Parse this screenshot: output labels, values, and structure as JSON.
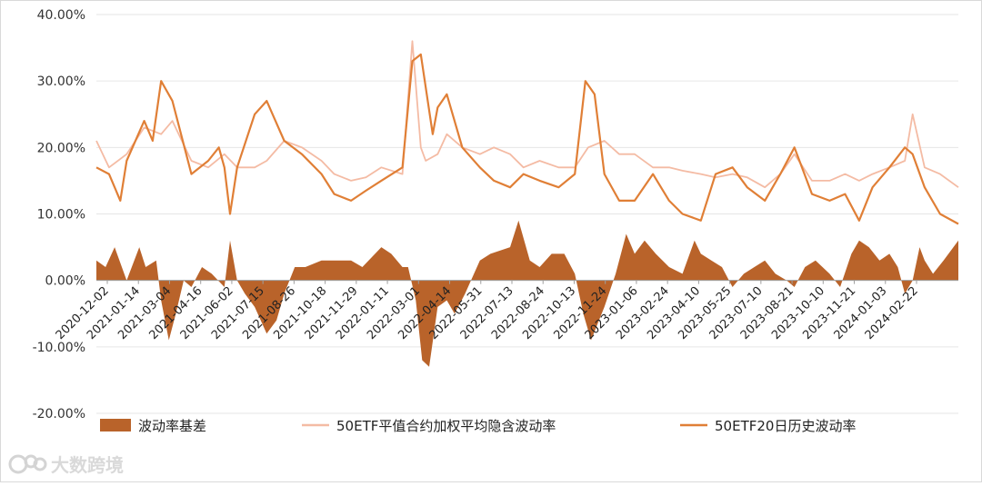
{
  "colors": {
    "basis": "#b9632a",
    "implied": "#f4bba4",
    "historical": "#e07f36",
    "grid": "#e6e6e6",
    "axis": "#9f9f9f",
    "watermark": "#d4d4d4"
  },
  "watermark": {
    "text": "大数跨境",
    "icon": "brand-logo-icon"
  },
  "chart_data": {
    "type": "line",
    "title": "",
    "xlabel": "",
    "ylabel": "",
    "ylim": [
      -0.2,
      0.4
    ],
    "yticks": [
      -0.2,
      -0.1,
      0.0,
      0.1,
      0.2,
      0.3,
      0.4
    ],
    "ytick_labels": [
      "-20.00%",
      "-10.00%",
      "0.00%",
      "10.00%",
      "20.00%",
      "30.00%",
      "40.00%"
    ],
    "x_range": [
      "2020-12-02",
      "2024-04-10"
    ],
    "xtick_labels": [
      "2020-12-02",
      "2021-01-14",
      "2021-03-04",
      "2021-04-16",
      "2021-06-02",
      "2021-07-15",
      "2021-08-26",
      "2021-10-18",
      "2021-11-29",
      "2022-01-11",
      "2022-03-01",
      "2022-04-14",
      "2022-05-31",
      "2022-07-13",
      "2022-08-24",
      "2022-10-13",
      "2022-11-24",
      "2023-01-06",
      "2023-02-24",
      "2023-04-10",
      "2023-05-25",
      "2023-07-10",
      "2023-08-21",
      "2023-10-10",
      "2023-11-21",
      "2024-01-03",
      "2024-02-22"
    ],
    "legend": {
      "position": "bottom",
      "items": [
        "波动率基差",
        "50ETF平值合约加权平均隐含波动率",
        "50ETF20日历史波动率"
      ]
    },
    "series": [
      {
        "name": "50ETF平值合约加权平均隐含波动率",
        "type": "line",
        "x": [
          "2020-12-02",
          "2020-12-20",
          "2021-01-14",
          "2021-02-08",
          "2021-03-04",
          "2021-03-20",
          "2021-04-16",
          "2021-05-10",
          "2021-06-02",
          "2021-06-20",
          "2021-07-15",
          "2021-08-01",
          "2021-08-26",
          "2021-09-20",
          "2021-10-18",
          "2021-11-05",
          "2021-11-29",
          "2021-12-20",
          "2022-01-11",
          "2022-02-10",
          "2022-02-24",
          "2022-03-08",
          "2022-03-15",
          "2022-04-01",
          "2022-04-14",
          "2022-05-06",
          "2022-05-31",
          "2022-06-20",
          "2022-07-13",
          "2022-08-01",
          "2022-08-24",
          "2022-09-20",
          "2022-10-13",
          "2022-11-01",
          "2022-11-24",
          "2022-12-15",
          "2023-01-06",
          "2023-02-01",
          "2023-02-24",
          "2023-03-15",
          "2023-04-10",
          "2023-05-01",
          "2023-05-25",
          "2023-06-15",
          "2023-07-10",
          "2023-08-01",
          "2023-08-21",
          "2023-09-15",
          "2023-10-10",
          "2023-11-01",
          "2023-11-21",
          "2023-12-10",
          "2024-01-03",
          "2024-01-25",
          "2024-02-05",
          "2024-02-22",
          "2024-03-15",
          "2024-04-10"
        ],
        "values": [
          0.21,
          0.17,
          0.19,
          0.23,
          0.22,
          0.24,
          0.18,
          0.17,
          0.19,
          0.17,
          0.17,
          0.18,
          0.21,
          0.2,
          0.18,
          0.16,
          0.15,
          0.155,
          0.17,
          0.16,
          0.36,
          0.2,
          0.18,
          0.19,
          0.22,
          0.2,
          0.19,
          0.2,
          0.19,
          0.17,
          0.18,
          0.17,
          0.17,
          0.2,
          0.21,
          0.19,
          0.19,
          0.17,
          0.17,
          0.165,
          0.16,
          0.155,
          0.16,
          0.155,
          0.14,
          0.16,
          0.19,
          0.15,
          0.15,
          0.16,
          0.15,
          0.16,
          0.17,
          0.18,
          0.25,
          0.17,
          0.16,
          0.14
        ]
      },
      {
        "name": "50ETF20日历史波动率",
        "type": "line",
        "x": [
          "2020-12-02",
          "2020-12-20",
          "2021-01-05",
          "2021-01-14",
          "2021-02-08",
          "2021-02-20",
          "2021-03-04",
          "2021-03-20",
          "2021-04-16",
          "2021-05-10",
          "2021-05-25",
          "2021-06-02",
          "2021-06-10",
          "2021-06-20",
          "2021-07-15",
          "2021-08-01",
          "2021-08-26",
          "2021-09-20",
          "2021-10-18",
          "2021-11-05",
          "2021-11-29",
          "2021-12-20",
          "2022-01-11",
          "2022-02-10",
          "2022-02-24",
          "2022-03-08",
          "2022-03-25",
          "2022-04-01",
          "2022-04-14",
          "2022-05-06",
          "2022-05-31",
          "2022-06-20",
          "2022-07-13",
          "2022-08-01",
          "2022-08-24",
          "2022-09-20",
          "2022-10-13",
          "2022-10-28",
          "2022-11-10",
          "2022-11-24",
          "2022-12-15",
          "2023-01-06",
          "2023-02-01",
          "2023-02-24",
          "2023-03-15",
          "2023-04-10",
          "2023-05-01",
          "2023-05-25",
          "2023-06-15",
          "2023-07-10",
          "2023-08-01",
          "2023-08-21",
          "2023-09-15",
          "2023-10-10",
          "2023-11-01",
          "2023-11-21",
          "2023-12-10",
          "2024-01-03",
          "2024-01-25",
          "2024-02-05",
          "2024-02-22",
          "2024-03-15",
          "2024-04-10"
        ],
        "values": [
          0.17,
          0.16,
          0.12,
          0.18,
          0.24,
          0.21,
          0.3,
          0.27,
          0.16,
          0.18,
          0.2,
          0.17,
          0.1,
          0.17,
          0.25,
          0.27,
          0.21,
          0.19,
          0.16,
          0.13,
          0.12,
          0.135,
          0.15,
          0.17,
          0.33,
          0.34,
          0.22,
          0.26,
          0.28,
          0.2,
          0.17,
          0.15,
          0.14,
          0.16,
          0.15,
          0.14,
          0.16,
          0.3,
          0.28,
          0.16,
          0.12,
          0.12,
          0.16,
          0.12,
          0.1,
          0.09,
          0.16,
          0.17,
          0.14,
          0.12,
          0.16,
          0.2,
          0.13,
          0.12,
          0.13,
          0.09,
          0.14,
          0.17,
          0.2,
          0.19,
          0.14,
          0.1,
          0.085
        ]
      },
      {
        "name": "波动率基差",
        "type": "area",
        "x": [
          "2020-12-02",
          "2020-12-15",
          "2020-12-28",
          "2021-01-14",
          "2021-02-01",
          "2021-02-10",
          "2021-02-25",
          "2021-03-04",
          "2021-03-15",
          "2021-03-25",
          "2021-04-05",
          "2021-04-16",
          "2021-05-01",
          "2021-05-15",
          "2021-06-02",
          "2021-06-10",
          "2021-06-20",
          "2021-07-01",
          "2021-07-15",
          "2021-08-01",
          "2021-08-15",
          "2021-08-26",
          "2021-09-10",
          "2021-09-25",
          "2021-10-18",
          "2021-11-05",
          "2021-11-29",
          "2021-12-15",
          "2022-01-11",
          "2022-01-25",
          "2022-02-10",
          "2022-02-18",
          "2022-03-01",
          "2022-03-10",
          "2022-03-20",
          "2022-04-01",
          "2022-04-14",
          "2022-04-25",
          "2022-05-10",
          "2022-05-31",
          "2022-06-15",
          "2022-07-13",
          "2022-07-25",
          "2022-08-10",
          "2022-08-24",
          "2022-09-10",
          "2022-09-28",
          "2022-10-13",
          "2022-10-25",
          "2022-11-05",
          "2022-11-24",
          "2022-12-10",
          "2022-12-25",
          "2023-01-06",
          "2023-01-20",
          "2023-02-05",
          "2023-02-24",
          "2023-03-15",
          "2023-04-01",
          "2023-04-10",
          "2023-04-25",
          "2023-05-10",
          "2023-05-25",
          "2023-06-10",
          "2023-06-25",
          "2023-07-10",
          "2023-07-25",
          "2023-08-10",
          "2023-08-21",
          "2023-09-05",
          "2023-09-20",
          "2023-10-10",
          "2023-10-25",
          "2023-11-10",
          "2023-11-21",
          "2023-12-05",
          "2023-12-20",
          "2024-01-03",
          "2024-01-15",
          "2024-01-25",
          "2024-02-05",
          "2024-02-15",
          "2024-02-22",
          "2024-03-05",
          "2024-03-20",
          "2024-04-10"
        ],
        "values": [
          0.03,
          0.02,
          0.05,
          0.0,
          0.05,
          0.02,
          0.03,
          -0.03,
          -0.09,
          -0.05,
          0.0,
          -0.01,
          0.02,
          0.01,
          -0.01,
          0.06,
          0.0,
          -0.02,
          -0.04,
          -0.08,
          -0.06,
          -0.02,
          0.02,
          0.02,
          0.03,
          0.03,
          0.03,
          0.02,
          0.05,
          0.04,
          0.02,
          0.02,
          -0.03,
          -0.12,
          -0.13,
          -0.04,
          -0.03,
          -0.05,
          -0.02,
          0.03,
          0.04,
          0.05,
          0.09,
          0.03,
          0.02,
          0.04,
          0.04,
          0.01,
          -0.05,
          -0.09,
          -0.04,
          0.01,
          0.07,
          0.04,
          0.06,
          0.04,
          0.02,
          0.01,
          0.06,
          0.04,
          0.03,
          0.02,
          -0.01,
          0.01,
          0.02,
          0.03,
          0.01,
          0.0,
          -0.01,
          0.02,
          0.03,
          0.01,
          -0.01,
          0.04,
          0.06,
          0.05,
          0.03,
          0.04,
          0.02,
          -0.02,
          0.0,
          0.05,
          0.03,
          0.01,
          0.03,
          0.06
        ]
      }
    ]
  }
}
